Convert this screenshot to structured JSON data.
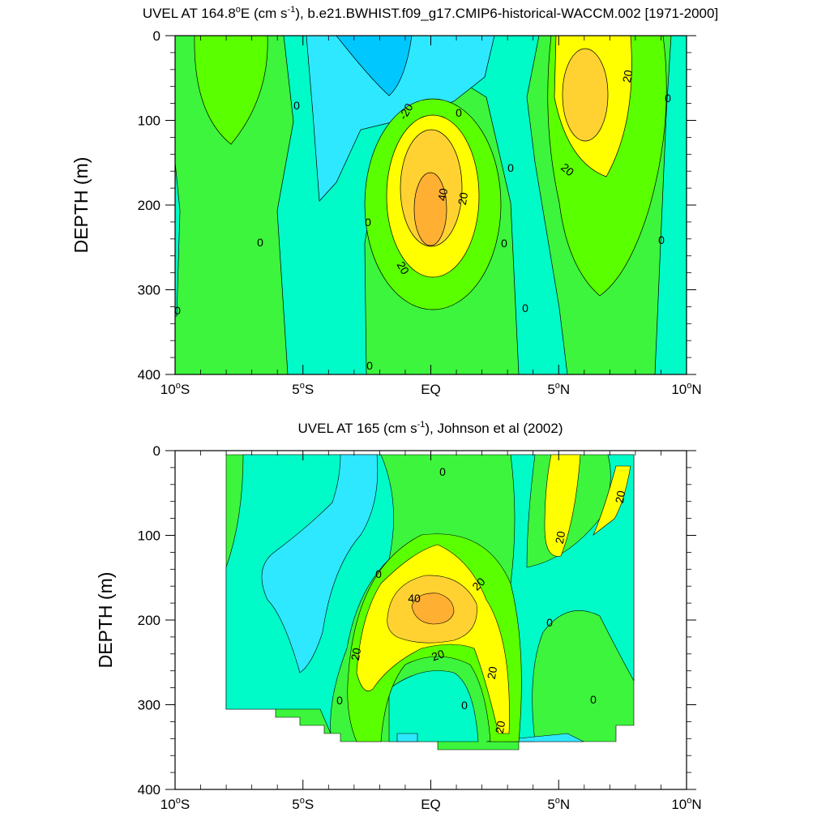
{
  "colors": {
    "cyan_dark": "#00c8ff",
    "cyan": "#2ee8ff",
    "teal": "#00fac8",
    "green_light": "#3cf53c",
    "green": "#5aff00",
    "yellow": "#ffff00",
    "orange_light": "#ffd232",
    "orange": "#ffaf32",
    "white": "#ffffff"
  },
  "chart_data": [
    {
      "type": "contour",
      "title_pre": "UVEL AT 164.8",
      "title_sup1": "o",
      "title_mid": "E (cm s",
      "title_sup2": "-1",
      "title_post": "), b.e21.BWHIST.f09_g17.CMIP6-historical-WACCM.002 [1971-2000]",
      "ylabel": "DEPTH (m)",
      "xlabel": "",
      "x_ticks": [
        {
          "value": -10,
          "label": "10",
          "sup": "o",
          "hemi": "S"
        },
        {
          "value": -5,
          "label": "5",
          "sup": "o",
          "hemi": "S"
        },
        {
          "value": 0,
          "label": "EQ",
          "sup": "",
          "hemi": ""
        },
        {
          "value": 5,
          "label": "5",
          "sup": "o",
          "hemi": "N"
        },
        {
          "value": 10,
          "label": "10",
          "sup": "o",
          "hemi": "N"
        }
      ],
      "y_ticks": [
        0,
        100,
        200,
        300,
        400
      ],
      "xlim": [
        -10,
        10
      ],
      "ylim": [
        0,
        400
      ],
      "y_reversed": true,
      "contour_interval": 10,
      "contour_labels": [
        "0",
        "0",
        "0",
        "0",
        "0",
        "0",
        "0",
        "0",
        "0",
        "0",
        "-20",
        "20",
        "20",
        "20",
        "20",
        "40"
      ],
      "features": [
        {
          "name": "Equatorial Undercurrent core",
          "lon": 0.3,
          "depth": 200,
          "max_value": 45
        },
        {
          "name": "North Equatorial Countercurrent",
          "lon": 6.2,
          "depth": 70,
          "max_value": 35
        },
        {
          "name": "South Equatorial Current minimum",
          "lon": -2.2,
          "depth": 30,
          "min_value": -25
        }
      ]
    },
    {
      "type": "contour",
      "title_pre": "UVEL AT 165 (cm s",
      "title_sup1": "-1",
      "title_post": "), Johnson et al (2002)",
      "ylabel": "DEPTH (m)",
      "xlabel": "",
      "x_ticks": [
        {
          "value": -10,
          "label": "10",
          "sup": "o",
          "hemi": "S"
        },
        {
          "value": -5,
          "label": "5",
          "sup": "o",
          "hemi": "S"
        },
        {
          "value": 0,
          "label": "EQ",
          "sup": "",
          "hemi": ""
        },
        {
          "value": 5,
          "label": "5",
          "sup": "o",
          "hemi": "N"
        },
        {
          "value": 10,
          "label": "10",
          "sup": "o",
          "hemi": "N"
        }
      ],
      "y_ticks": [
        0,
        100,
        200,
        300,
        400
      ],
      "xlim": [
        -10,
        10
      ],
      "ylim": [
        0,
        400
      ],
      "y_reversed": true,
      "data_lon_range": [
        -8,
        8
      ],
      "contour_interval": 10,
      "contour_labels": [
        "0",
        "0",
        "0",
        "0",
        "0",
        "0",
        "20",
        "20",
        "20",
        "20",
        "20",
        "20",
        "20",
        "40"
      ],
      "features": [
        {
          "name": "Equatorial Undercurrent core",
          "lon": 0,
          "depth": 185,
          "max_value": 45
        },
        {
          "name": "North Equatorial Countercurrent",
          "lon": 5.5,
          "depth": 50,
          "max_value": 25
        }
      ]
    }
  ]
}
